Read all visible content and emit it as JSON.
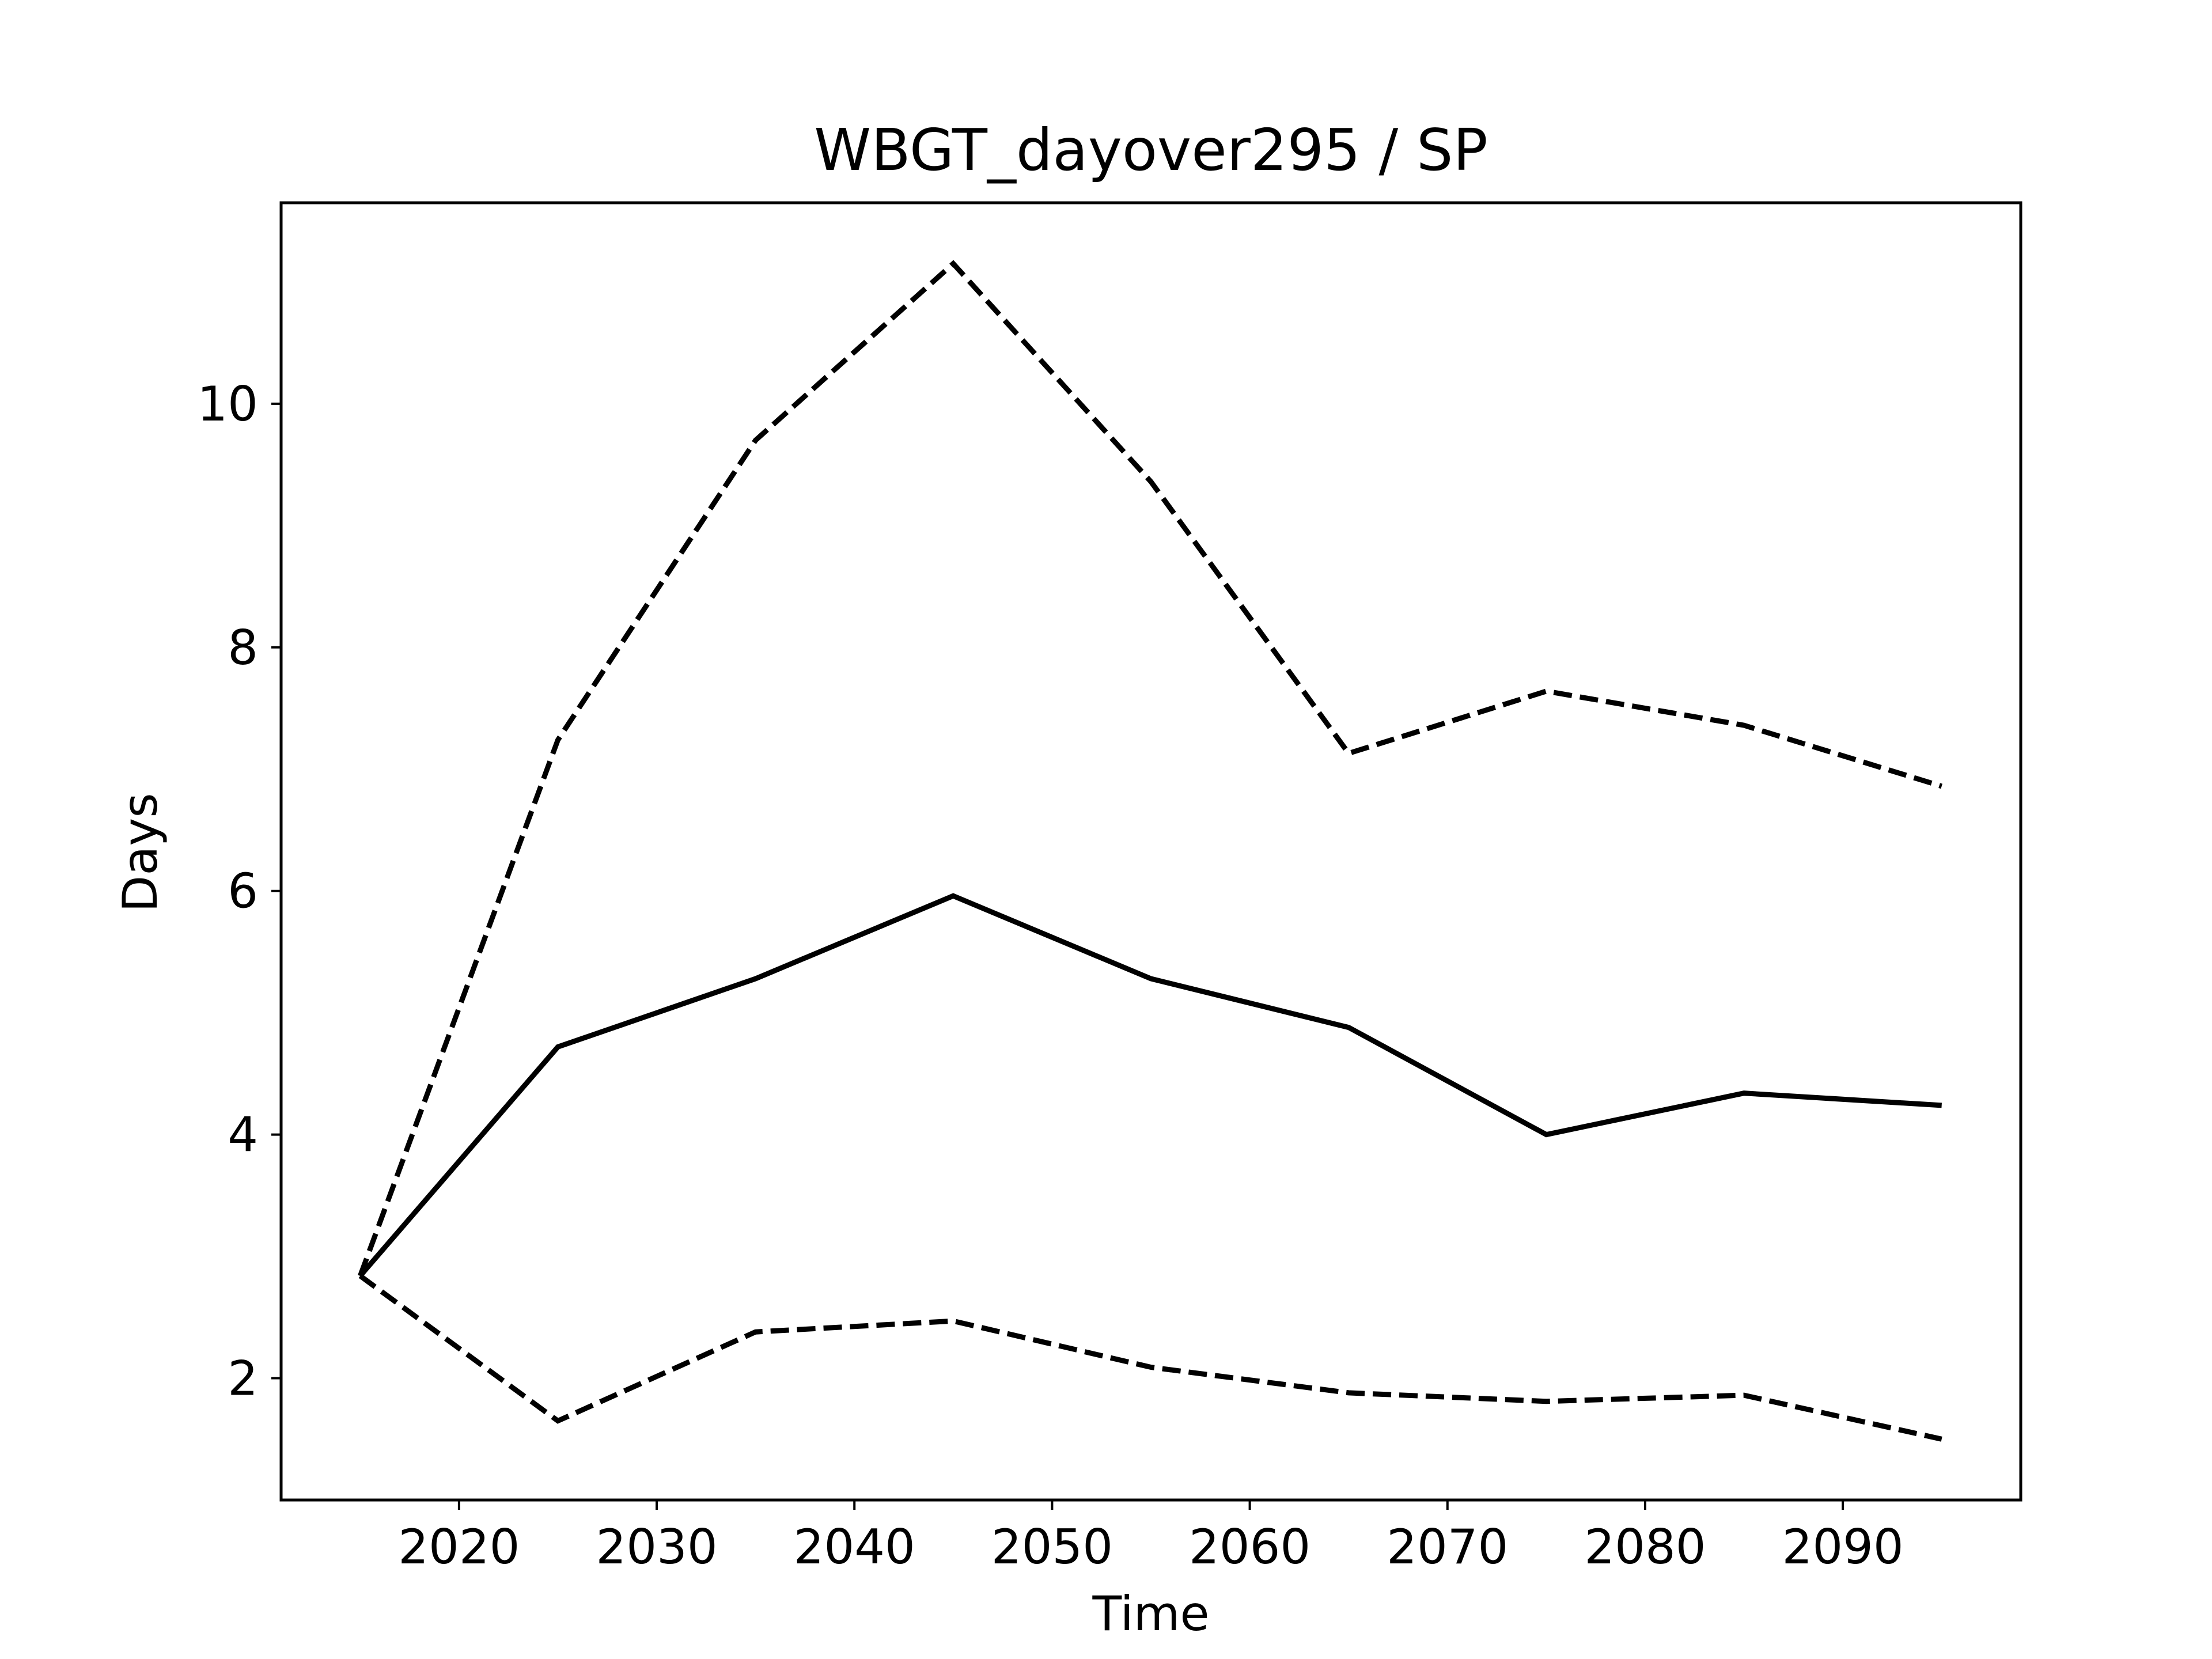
{
  "chart_data": {
    "type": "line",
    "title": "WBGT_dayover295 / SP",
    "xlabel": "Time",
    "ylabel": "Days",
    "xlim": [
      2011,
      2099
    ],
    "ylim": [
      1.0,
      11.65
    ],
    "xticks": [
      2020,
      2030,
      2040,
      2050,
      2060,
      2070,
      2080,
      2090
    ],
    "yticks": [
      2,
      4,
      6,
      8,
      10
    ],
    "grid": false,
    "legend": "none",
    "x": [
      2015,
      2025,
      2035,
      2045,
      2055,
      2065,
      2075,
      2085,
      2095
    ],
    "series": [
      {
        "style": "solid",
        "color": "#000000",
        "values": [
          2.84,
          4.72,
          5.28,
          5.96,
          5.28,
          4.88,
          4.0,
          4.34,
          4.24
        ]
      },
      {
        "style": "dashed",
        "color": "#000000",
        "values": [
          2.84,
          7.24,
          9.7,
          11.15,
          9.36,
          7.13,
          7.64,
          7.36,
          6.86
        ]
      },
      {
        "style": "dashed",
        "color": "#000000",
        "values": [
          2.84,
          1.65,
          2.38,
          2.47,
          2.09,
          1.88,
          1.81,
          1.86,
          1.5
        ]
      }
    ]
  }
}
